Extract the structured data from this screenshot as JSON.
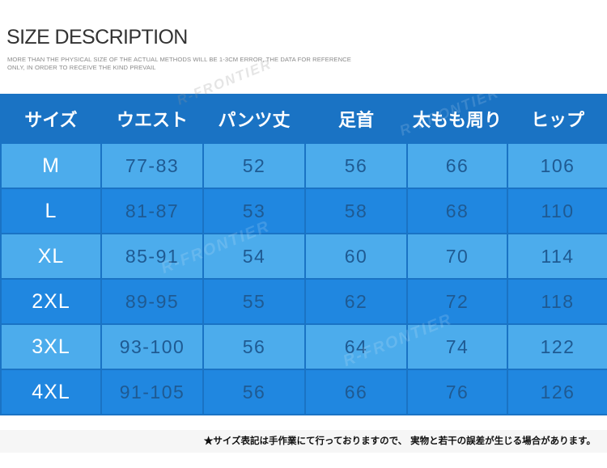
{
  "header": {
    "title": "SIZE DESCRIPTION",
    "subtitle": "MORE THAN THE PHYSICAL SIZE OF THE ACTUAL METHODS WILL BE 1-3CM ERROR, THE DATA FOR REFERENCE ONLY, IN ORDER TO RECEIVE THE KIND PREVAIL"
  },
  "watermark": "R-FRONTIER",
  "colors": {
    "table_dark_blue": "#1a73c4",
    "row_light": "#4cacec",
    "row_dark": "#2087e0"
  },
  "table": {
    "headers": [
      "サイズ",
      "ウエスト",
      "パンツ丈",
      "足首",
      "太もも周り",
      "ヒップ"
    ],
    "rows": [
      [
        "M",
        "77-83",
        "52",
        "56",
        "66",
        "106"
      ],
      [
        "L",
        "81-87",
        "53",
        "58",
        "68",
        "110"
      ],
      [
        "XL",
        "85-91",
        "54",
        "60",
        "70",
        "114"
      ],
      [
        "2XL",
        "89-95",
        "55",
        "62",
        "72",
        "118"
      ],
      [
        "3XL",
        "93-100",
        "56",
        "64",
        "74",
        "122"
      ],
      [
        "4XL",
        "91-105",
        "56",
        "66",
        "76",
        "126"
      ]
    ]
  },
  "footer": {
    "note": "★サイズ表記は手作業にて行っておりますので、 実物と若干の誤差が生じる場合があります。"
  }
}
